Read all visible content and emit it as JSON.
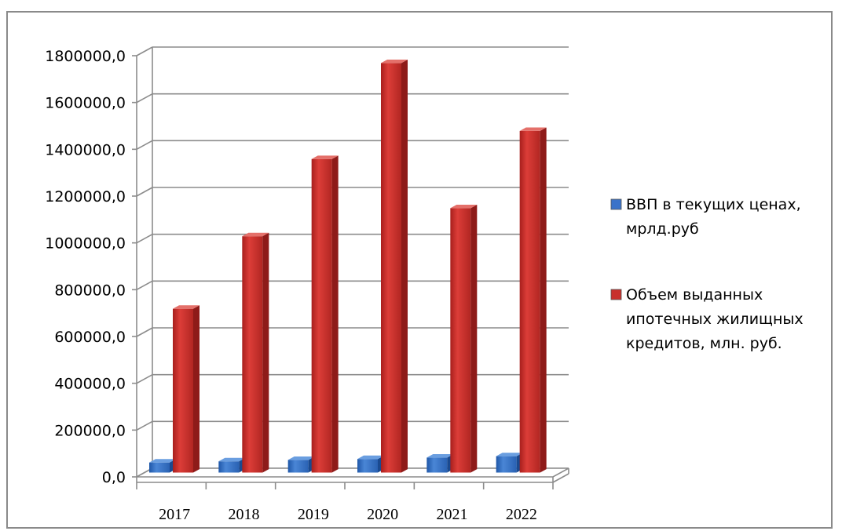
{
  "chart_data": {
    "type": "bar",
    "categories": [
      "2017",
      "2018",
      "2019",
      "2020",
      "2021",
      "2022"
    ],
    "series": [
      {
        "name": "ВВП в текущих ценах, мрлд.руб",
        "values": [
          43000,
          48000,
          54000,
          58000,
          64000,
          70000
        ],
        "color": "#3b73c9"
      },
      {
        "name": "Объем выданных ипотечных жилищных кредитов, млн. руб.",
        "values": [
          700000,
          1010000,
          1340000,
          1750000,
          1130000,
          1460000
        ],
        "color": "#c8302c"
      }
    ],
    "ylim": [
      0,
      1800000
    ],
    "ytick_labels": [
      "0,0",
      "200000,0",
      "400000,0",
      "600000,0",
      "800000,0",
      "1000000,0",
      "1200000,0",
      "1400000,0",
      "1600000,0",
      "1800000,0"
    ],
    "grid": true,
    "legend_position": "right",
    "legend": [
      {
        "lines": [
          "ВВП в текущих ценах,",
          "мрлд.руб"
        ]
      },
      {
        "lines": [
          "Объем выданных",
          "ипотечных жилищных",
          "кредитов, млн. руб."
        ]
      }
    ],
    "style": "3d-column"
  }
}
